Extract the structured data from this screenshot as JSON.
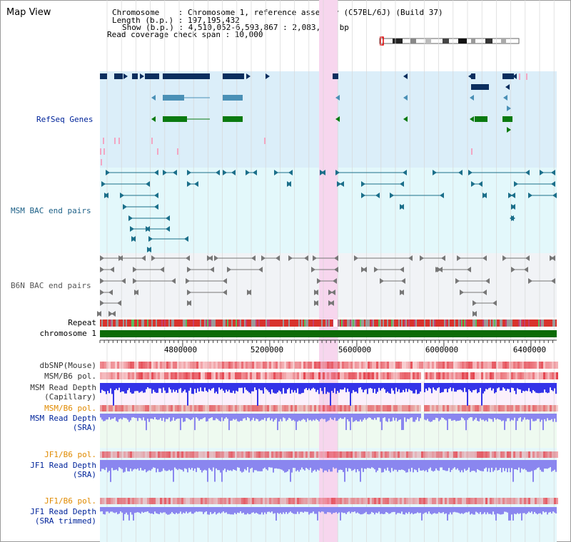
{
  "title": "Map View",
  "info": {
    "line1": "Chromosome    : Chromosome 1, reference assembly (C57BL/6J) (Build 37)",
    "line2": "Length (b.p.) : 197,195,432",
    "line3": "Show (b.p.) : 4,510,052-6,593,867 : 2,083,816 bp",
    "line4": "Read coverage check span : 10,000"
  },
  "region": {
    "start": 4510052,
    "end": 6593867
  },
  "axis_ticks": [
    "4800000",
    "5200000",
    "5600000",
    "6000000",
    "6400000"
  ],
  "tracks": {
    "refseq": "RefSeq Genes",
    "msm_bac": "MSM BAC end pairs",
    "b6n_bac": "B6N BAC end pairs",
    "repeat": "Repeat",
    "chrom": "chromosome 1",
    "dbsnp": "dbSNP(Mouse)",
    "msm_pol": "MSM/B6 pol.",
    "msm_depth_cap_1": "MSM Read Depth",
    "msm_depth_cap_2": "(Capillary)",
    "msm_pol2": "MSM/B6 pol.",
    "msm_depth_sra_1": "MSM Read Depth",
    "msm_depth_sra_2": "(SRA)",
    "jf1_pol": "JF1/B6 pol.",
    "jf1_depth_1": "JF1 Read Depth",
    "jf1_depth_2": "(SRA)",
    "jf1_pol2": "JF1/B6 pol.",
    "jf1_trim_1": "JF1 Read Depth",
    "jf1_trim_2": "(SRA trimmed)"
  },
  "colors": {
    "refseq_bg": "#dbeef9",
    "msm_bg": "#e3f8fb",
    "b6n_bg": "#f1f3f6",
    "highlight": "#f7d6ee",
    "refseq_dark": "#0b2e5e",
    "refseq_mid": "#4a90b6",
    "refseq_green": "#0a7a10",
    "msm_line": "#1b6f8a",
    "b6n_line": "#777777",
    "chrom_bar": "#0c6b06",
    "depth_blue": "#3434e8",
    "depth_light": "#8a86ef",
    "pol_red": "#e4414b",
    "label_blue": "#00249a",
    "label_orange": "#e08a00"
  }
}
